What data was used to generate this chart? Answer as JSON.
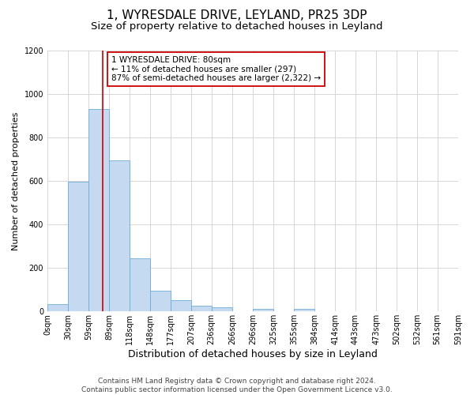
{
  "title": "1, WYRESDALE DRIVE, LEYLAND, PR25 3DP",
  "subtitle": "Size of property relative to detached houses in Leyland",
  "xlabel": "Distribution of detached houses by size in Leyland",
  "ylabel": "Number of detached properties",
  "bar_color": "#c5d9f0",
  "bar_edge_color": "#6baed6",
  "annotation_box_text": "1 WYRESDALE DRIVE: 80sqm\n← 11% of detached houses are smaller (297)\n87% of semi-detached houses are larger (2,322) →",
  "annotation_box_color": "#cc0000",
  "property_line_x": 80,
  "property_line_color": "#cc0000",
  "bin_edges": [
    0,
    30,
    59,
    89,
    118,
    148,
    177,
    207,
    236,
    266,
    296,
    325,
    355,
    384,
    414,
    443,
    473,
    502,
    532,
    561,
    591
  ],
  "bar_heights": [
    35,
    597,
    930,
    695,
    243,
    97,
    53,
    25,
    18,
    0,
    11,
    0,
    11,
    0,
    0,
    0,
    0,
    0,
    0,
    0
  ],
  "ylim": [
    0,
    1200
  ],
  "yticks": [
    0,
    200,
    400,
    600,
    800,
    1000,
    1200
  ],
  "xtick_labels": [
    "0sqm",
    "30sqm",
    "59sqm",
    "89sqm",
    "118sqm",
    "148sqm",
    "177sqm",
    "207sqm",
    "236sqm",
    "266sqm",
    "296sqm",
    "325sqm",
    "355sqm",
    "384sqm",
    "414sqm",
    "443sqm",
    "473sqm",
    "502sqm",
    "532sqm",
    "561sqm",
    "591sqm"
  ],
  "grid_color": "#d0d0d0",
  "background_color": "#ffffff",
  "footer_text": "Contains HM Land Registry data © Crown copyright and database right 2024.\nContains public sector information licensed under the Open Government Licence v3.0.",
  "title_fontsize": 11,
  "subtitle_fontsize": 9.5,
  "xlabel_fontsize": 9,
  "ylabel_fontsize": 8,
  "tick_fontsize": 7,
  "annotation_fontsize": 7.5,
  "footer_fontsize": 6.5
}
